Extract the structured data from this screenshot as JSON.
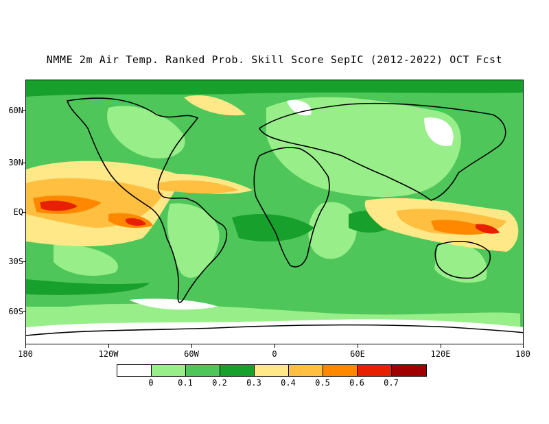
{
  "title": "NMME 2m Air Temp. Ranked Prob. Skill Score SepIC (2012-2022) OCT Fcst",
  "map": {
    "projection": "equirectangular",
    "lon_range": [
      -180,
      180
    ],
    "lat_range": [
      -80,
      80
    ],
    "x_ticks": [
      {
        "lon": -180,
        "label": "180"
      },
      {
        "lon": -120,
        "label": "120W"
      },
      {
        "lon": -60,
        "label": "60W"
      },
      {
        "lon": 0,
        "label": "0"
      },
      {
        "lon": 60,
        "label": "60E"
      },
      {
        "lon": 120,
        "label": "120E"
      },
      {
        "lon": 180,
        "label": "180"
      }
    ],
    "y_ticks": [
      {
        "lat": 60,
        "label": "60N"
      },
      {
        "lat": 30,
        "label": "30N"
      },
      {
        "lat": 0,
        "label": "EQ"
      },
      {
        "lat": -30,
        "label": "30S"
      },
      {
        "lat": -60,
        "label": "60S"
      }
    ],
    "background_category": "0.2-0.3 green",
    "coastlines": "continent outlines drawn in black"
  },
  "colorbar": {
    "colors": [
      "#ffffff",
      "#98ee88",
      "#4ec65a",
      "#18a02c",
      "#ffe888",
      "#ffbf40",
      "#ff8800",
      "#e62000",
      "#a00000"
    ],
    "labels": [
      "0",
      "0.1",
      "0.2",
      "0.3",
      "0.4",
      "0.5",
      "0.6",
      "0.7"
    ]
  }
}
